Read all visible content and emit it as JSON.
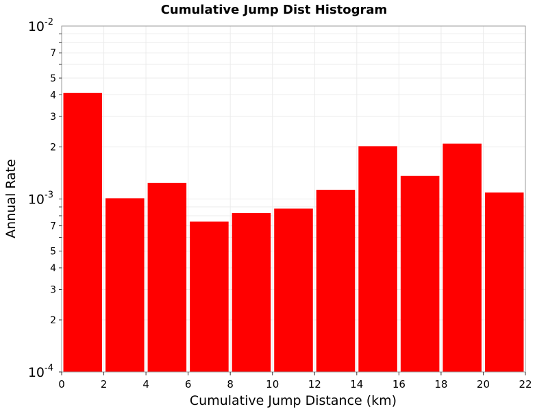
{
  "chart_data": {
    "type": "bar",
    "title": "Cumulative Jump Dist Histogram",
    "xlabel": "Cumulative Jump Distance (km)",
    "ylabel": "Annual Rate",
    "x_scale": "linear",
    "y_scale": "log",
    "xlim": [
      0,
      22
    ],
    "ylim": [
      0.0001,
      0.01
    ],
    "x_ticks": [
      "0",
      "2",
      "4",
      "6",
      "8",
      "10",
      "12",
      "14",
      "16",
      "18",
      "20",
      "22"
    ],
    "y_major_ticks": [
      {
        "base": "10",
        "exp": "-4",
        "value": 0.0001
      },
      {
        "base": "10",
        "exp": "-3",
        "value": 0.001
      },
      {
        "base": "10",
        "exp": "-2",
        "value": 0.01
      }
    ],
    "y_minor_tick_labels": [
      "2",
      "3",
      "4",
      "5",
      "7"
    ],
    "grid": true,
    "bar_color": "#ff0000",
    "bins": [
      {
        "x_start": 0,
        "x_end": 2,
        "value": 0.0041
      },
      {
        "x_start": 2,
        "x_end": 4,
        "value": 0.00101
      },
      {
        "x_start": 4,
        "x_end": 6,
        "value": 0.00124
      },
      {
        "x_start": 6,
        "x_end": 8,
        "value": 0.00074
      },
      {
        "x_start": 8,
        "x_end": 10,
        "value": 0.00083
      },
      {
        "x_start": 10,
        "x_end": 12,
        "value": 0.00088
      },
      {
        "x_start": 12,
        "x_end": 14,
        "value": 0.00113
      },
      {
        "x_start": 14,
        "x_end": 16,
        "value": 0.00202
      },
      {
        "x_start": 16,
        "x_end": 18,
        "value": 0.00136
      },
      {
        "x_start": 18,
        "x_end": 20,
        "value": 0.00209
      },
      {
        "x_start": 20,
        "x_end": 22,
        "value": 0.00109
      }
    ]
  }
}
